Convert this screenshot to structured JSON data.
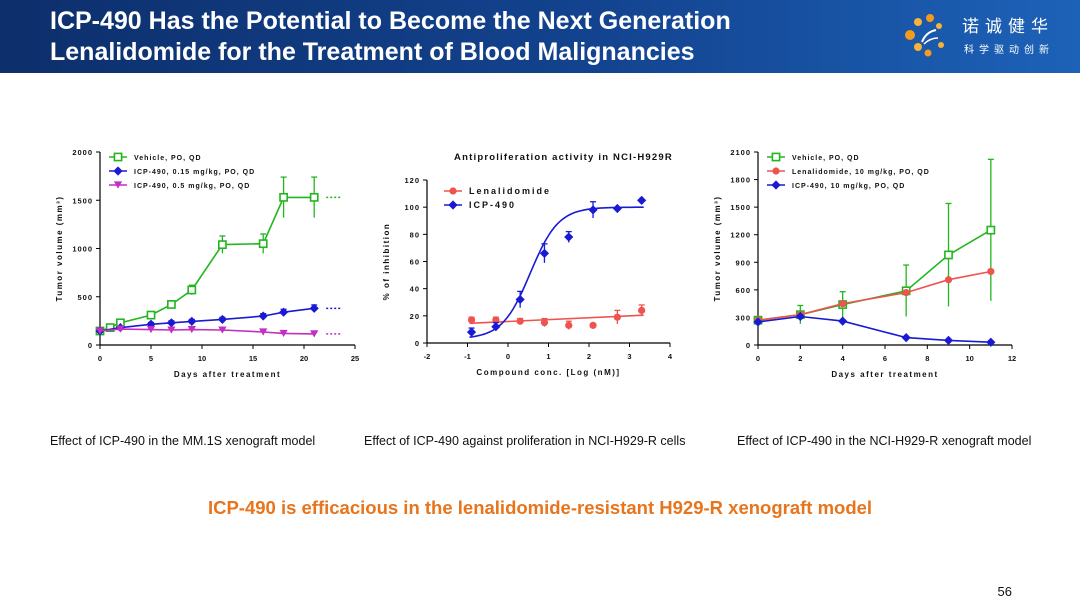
{
  "header": {
    "title_line1": "ICP-490 Has the Potential to Become the Next Generation",
    "title_line2": "Lenalidomide for the Treatment of Blood Malignancies",
    "logo_cn": "诺诚健华",
    "logo_sub": "科学驱动创新"
  },
  "captions": [
    "Effect of ICP-490 in the MM.1S xenograft model",
    "Effect of ICP-490 against proliferation in NCI-H929-R cells",
    "Effect of ICP-490 in the NCI-H929-R xenograft model"
  ],
  "conclusion": "ICP-490 is efficacious in the lenalidomide-resistant H929-R xenograft model",
  "page_number": "56",
  "colors": {
    "green": "#22b61e",
    "blue": "#1a1ad4",
    "magenta": "#c22fc2",
    "red": "#ee5350",
    "accent": "#e8741c"
  },
  "chart_data": [
    {
      "type": "line",
      "title": "",
      "xlabel": "Days after treatment",
      "ylabel": "Tumor volume (mm³)",
      "xlim": [
        0,
        25
      ],
      "ylim": [
        0,
        2000
      ],
      "xticks": [
        0,
        5,
        10,
        15,
        20,
        25
      ],
      "yticks": [
        0,
        500,
        1000,
        1500,
        2000
      ],
      "legend": "top-left",
      "series": [
        {
          "name": "Vehicle, PO, QD",
          "color": "#22b61e",
          "marker": "square",
          "x": [
            0,
            1,
            2,
            5,
            7,
            9,
            12,
            16,
            18,
            21
          ],
          "y": [
            145,
            180,
            230,
            310,
            420,
            570,
            1040,
            1050,
            1530,
            1530
          ],
          "err": [
            20,
            20,
            25,
            30,
            40,
            50,
            90,
            100,
            210,
            210
          ]
        },
        {
          "name": "ICP-490, 0.15 mg/kg, PO, QD",
          "color": "#1a1ad4",
          "marker": "diamond",
          "x": [
            0,
            2,
            5,
            7,
            9,
            12,
            16,
            18,
            21
          ],
          "y": [
            145,
            180,
            215,
            230,
            245,
            265,
            300,
            340,
            380
          ],
          "err": [
            15,
            15,
            18,
            20,
            20,
            22,
            25,
            30,
            35
          ]
        },
        {
          "name": "ICP-490, 0.5 mg/kg, PO, QD",
          "color": "#c22fc2",
          "marker": "triangle-down",
          "x": [
            0,
            2,
            5,
            7,
            9,
            12,
            16,
            18,
            21
          ],
          "y": [
            145,
            165,
            160,
            155,
            160,
            155,
            135,
            120,
            115
          ],
          "err": [
            15,
            15,
            15,
            15,
            15,
            15,
            15,
            15,
            15
          ]
        }
      ]
    },
    {
      "type": "line",
      "title": "Antiproliferation activity in NCI-H929R",
      "xlabel": "Compound conc. [Log (nM)]",
      "ylabel": "% of inhibition",
      "xlim": [
        -2,
        4
      ],
      "ylim": [
        0,
        120
      ],
      "xticks": [
        -2,
        -1,
        0,
        1,
        2,
        3,
        4
      ],
      "yticks": [
        0,
        20,
        40,
        60,
        80,
        100,
        120
      ],
      "legend": "top-left",
      "series": [
        {
          "name": "Lenalidomide",
          "color": "#ee5350",
          "marker": "circle",
          "x": [
            -0.9,
            -0.3,
            0.3,
            0.9,
            1.5,
            2.1,
            2.7,
            3.3
          ],
          "y": [
            17,
            17,
            16,
            15,
            13,
            13,
            19,
            24
          ],
          "err": [
            2,
            2,
            2,
            3,
            3,
            0,
            5,
            4
          ]
        },
        {
          "name": "ICP-490",
          "color": "#1a1ad4",
          "marker": "diamond",
          "x": [
            -0.9,
            -0.3,
            0.3,
            0.9,
            1.5,
            2.1,
            2.7,
            3.3
          ],
          "y": [
            8,
            12,
            32,
            66,
            78,
            98,
            99,
            105
          ],
          "err": [
            3,
            3,
            6,
            7,
            4,
            6,
            0,
            0
          ]
        }
      ]
    },
    {
      "type": "line",
      "title": "",
      "xlabel": "Days after treatment",
      "ylabel": "Tumor volume (mm³)",
      "xlim": [
        0,
        12
      ],
      "ylim": [
        0,
        2100
      ],
      "xticks": [
        0,
        2,
        4,
        6,
        8,
        10,
        12
      ],
      "yticks": [
        0,
        300,
        600,
        900,
        1200,
        1500,
        1800,
        2100
      ],
      "legend": "top-left",
      "series": [
        {
          "name": "Vehicle, PO, QD",
          "color": "#22b61e",
          "marker": "square",
          "x": [
            0,
            2,
            4,
            7,
            9,
            11
          ],
          "y": [
            270,
            330,
            440,
            590,
            980,
            1250
          ],
          "err": [
            30,
            100,
            140,
            280,
            560,
            770
          ]
        },
        {
          "name": "Lenalidomide, 10 mg/kg, PO, QD",
          "color": "#ee5350",
          "marker": "circle",
          "x": [
            0,
            2,
            4,
            7,
            9,
            11
          ],
          "y": [
            270,
            330,
            450,
            570,
            710,
            800
          ],
          "err": [
            0,
            0,
            0,
            0,
            0,
            0
          ]
        },
        {
          "name": "ICP-490, 10 mg/kg, PO, QD",
          "color": "#1a1ad4",
          "marker": "diamond",
          "x": [
            0,
            2,
            4,
            7,
            9,
            11
          ],
          "y": [
            250,
            310,
            260,
            80,
            50,
            30
          ],
          "err": [
            0,
            0,
            0,
            0,
            0,
            0
          ]
        }
      ]
    }
  ]
}
